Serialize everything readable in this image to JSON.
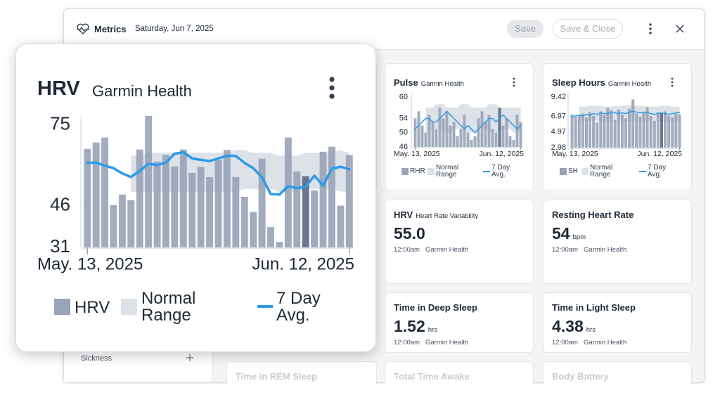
{
  "header": {
    "title": "Metrics",
    "date": "Saturday, Jun 7, 2025",
    "buttons": [
      "Save",
      "Save & Close"
    ]
  },
  "sidebar": {
    "items": [
      "Sickness"
    ]
  },
  "popup": {
    "title": "HRV",
    "source": "Garmin Health",
    "chart": {
      "type": "bar",
      "categories": [
        "May. 13, 2025",
        null,
        null,
        null,
        null,
        null,
        null,
        null,
        null,
        null,
        null,
        null,
        null,
        null,
        null,
        null,
        null,
        null,
        null,
        null,
        null,
        null,
        null,
        null,
        null,
        null,
        null,
        null,
        null,
        null,
        "Jun. 12, 2025"
      ],
      "ylim": [
        31,
        78
      ],
      "yticks": [
        75,
        46,
        31
      ],
      "highlight_index": 25,
      "highlight_color": "#5b6884",
      "series": [
        {
          "name": "HRV",
          "type": "bar",
          "color": "#98a3b7",
          "values": [
            66.4,
            68.7,
            70.5,
            46.2,
            50,
            48,
            66.2,
            78.3,
            61.9,
            64.2,
            60.1,
            66.2,
            57.8,
            59.9,
            56.3,
            62.4,
            66,
            56.3,
            49.2,
            43.7,
            62.9,
            38.3,
            33,
            70.5,
            58.3,
            56.6,
            51.5,
            65.4,
            67.2,
            46,
            64.2
          ]
        },
        {
          "name": "Normal Range",
          "type": "range",
          "color": "#dde1e8",
          "low": [
            null,
            null,
            null,
            null,
            null,
            51,
            51,
            51,
            51,
            51,
            51,
            51,
            51,
            51,
            51,
            51,
            51,
            51,
            52,
            52,
            52,
            52,
            51,
            51,
            51,
            52,
            52,
            52,
            52,
            51,
            51
          ],
          "high": [
            null,
            null,
            null,
            null,
            null,
            64,
            64,
            65,
            65,
            65,
            65,
            65,
            65,
            65,
            65,
            65,
            65,
            66,
            66,
            65,
            65,
            65,
            64,
            64,
            64,
            65,
            65,
            65,
            65,
            66,
            65
          ]
        },
        {
          "name": "7 Day Avg.",
          "type": "line",
          "color": "#2a9be8",
          "values": [
            61.4,
            61.5,
            60.4,
            59.5,
            57.6,
            56.3,
            58.5,
            61.1,
            60.6,
            61.5,
            64.7,
            65.2,
            63,
            62.5,
            62,
            63,
            63.9,
            63.9,
            61.4,
            59.5,
            56.2,
            50.2,
            50,
            53,
            52.3,
            52.8,
            56.8,
            53.2,
            59.3,
            60,
            59.1
          ]
        }
      ]
    }
  },
  "cards": [
    {
      "title": "Pulse",
      "source": "Garmin Health",
      "chart": {
        "type": "bar",
        "categories": [
          "May. 13, 2025",
          null,
          null,
          null,
          null,
          null,
          null,
          null,
          null,
          null,
          null,
          null,
          null,
          null,
          null,
          null,
          null,
          null,
          null,
          null,
          null,
          null,
          null,
          null,
          null,
          null,
          null,
          null,
          null,
          null,
          "Jun. 12, 2025"
        ],
        "ylim": [
          46,
          61
        ],
        "yticks": [
          60,
          54,
          50,
          46
        ],
        "highlight_index": 24,
        "highlight_color": "#5b6884",
        "series": [
          {
            "name": "RHR",
            "type": "bar",
            "color": "#98a3b7",
            "values": [
              54,
              56,
              52,
              50,
              55,
              53,
              51,
              57,
              54,
              56,
              52,
              53,
              49,
              51,
              55,
              50,
              48,
              49,
              54,
              56,
              53,
              55,
              51,
              50,
              57,
              52,
              54,
              49,
              48,
              55,
              53
            ]
          },
          {
            "name": "Normal Range",
            "type": "range",
            "color": "#dde1e8",
            "low": [
              null,
              null,
              null,
              50,
              50,
              51,
              51,
              51,
              50,
              50,
              50,
              51,
              51,
              51,
              50,
              50,
              50,
              50,
              51,
              51,
              51,
              50,
              50,
              50,
              50,
              51,
              51,
              51,
              50,
              50,
              50
            ],
            "high": [
              null,
              null,
              null,
              57,
              57,
              57,
              58,
              58,
              58,
              57,
              57,
              57,
              57,
              58,
              58,
              58,
              57,
              57,
              57,
              57,
              57,
              58,
              58,
              58,
              57,
              57,
              57,
              57,
              57,
              57,
              57
            ]
          },
          {
            "name": "7 Day Avg.",
            "type": "line",
            "color": "#2a9be8",
            "values": [
              51,
              52,
              53,
              54,
              54,
              53,
              53,
              54,
              55,
              56,
              55,
              54,
              53,
              52,
              51,
              52,
              51,
              50,
              51,
              52,
              53,
              54,
              54,
              53,
              54,
              55,
              54,
              53,
              52,
              51,
              52
            ]
          }
        ]
      }
    },
    {
      "title": "Sleep Hours",
      "source": "Garmin Health",
      "chart": {
        "type": "bar",
        "categories": [
          "May. 13, 2025",
          null,
          null,
          null,
          null,
          null,
          null,
          null,
          null,
          null,
          null,
          null,
          null,
          null,
          null,
          null,
          null,
          null,
          null,
          null,
          null,
          null,
          null,
          null,
          null,
          null,
          null,
          null,
          null,
          null,
          "Jun. 12, 2025"
        ],
        "ylim": [
          2.98,
          9.9
        ],
        "yticks": [
          9.42,
          6.97,
          4.97,
          2.98
        ],
        "highlight_index": 25,
        "highlight_color": "#5b6884",
        "series": [
          {
            "name": "SH",
            "type": "bar",
            "color": "#98a3b7",
            "values": [
              7.2,
              6.9,
              7.0,
              7.3,
              6.8,
              7.5,
              7.0,
              6.2,
              7.6,
              7.1,
              8.0,
              7.7,
              6.5,
              7.8,
              7.2,
              6.7,
              7.9,
              9.1,
              7.3,
              6.9,
              7.4,
              8.1,
              7.0,
              6.4,
              7.5,
              7.4,
              7.6,
              7.0,
              6.8,
              7.3,
              7.2
            ]
          },
          {
            "name": "Normal Range",
            "type": "range",
            "color": "#dde1e8",
            "low": [
              null,
              null,
              6.3,
              6.3,
              6.3,
              6.4,
              6.4,
              6.4,
              6.3,
              6.3,
              6.3,
              6.3,
              6.4,
              6.4,
              6.4,
              6.4,
              6.3,
              6.3,
              6.3,
              6.3,
              6.4,
              6.4,
              6.4,
              6.4,
              6.3,
              6.3,
              6.3,
              6.3,
              6.3,
              6.3,
              6.3
            ],
            "high": [
              null,
              null,
              8.2,
              8.2,
              8.2,
              8.3,
              8.3,
              8.3,
              8.3,
              8.2,
              8.2,
              8.2,
              8.3,
              8.3,
              8.3,
              8.4,
              8.4,
              8.4,
              8.3,
              8.3,
              8.3,
              8.2,
              8.2,
              8.2,
              8.2,
              8.3,
              8.3,
              8.3,
              8.2,
              8.2,
              8.2
            ]
          },
          {
            "name": "7 Day Avg.",
            "type": "line",
            "color": "#2a9be8",
            "values": [
              6.9,
              7.0,
              7.1,
              7.0,
              7.2,
              7.1,
              7.3,
              7.2,
              7.4,
              7.3,
              7.3,
              7.5,
              7.4,
              7.3,
              7.4,
              7.3,
              7.5,
              7.6,
              7.5,
              7.4,
              7.5,
              7.4,
              7.3,
              7.2,
              7.3,
              7.4,
              7.3,
              7.2,
              7.3,
              7.4,
              7.4
            ]
          }
        ]
      }
    }
  ],
  "metrics": [
    {
      "title": "HRV",
      "subtitle": "Heart Rate Variability",
      "value": "55.0",
      "time": "12:00am",
      "source": "Garmin Health"
    },
    {
      "title": "Resting Heart Rate",
      "value": "54",
      "unit": "bpm",
      "time": "12:00am",
      "source": "Garmin Health"
    },
    {
      "title": "Time in Deep Sleep",
      "value": "1.52",
      "unit": "hrs",
      "time": "12:00am",
      "source": "Garmin Health"
    },
    {
      "title": "Time in Light Sleep",
      "value": "4.38",
      "unit": "hrs",
      "time": "12:00am",
      "source": "Garmin Health"
    }
  ],
  "more_cards": [
    "Time in REM Sleep",
    "Total Time Awake",
    "Body Battery"
  ]
}
